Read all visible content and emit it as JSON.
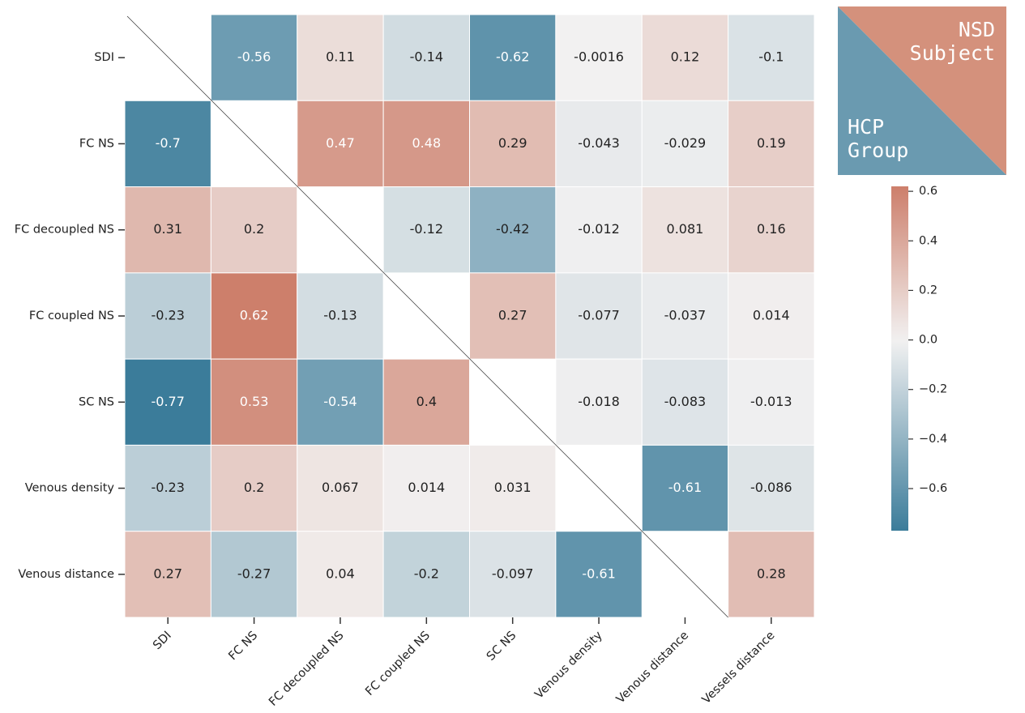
{
  "chart_data": {
    "type": "heatmap",
    "x_categories": [
      "SDI",
      "FC NS",
      "FC decoupled NS",
      "FC coupled NS",
      "SC NS",
      "Venous density",
      "Venous distance",
      "Vessels distance"
    ],
    "y_categories": [
      "SDI",
      "FC NS",
      "FC decoupled NS",
      "FC coupled NS",
      "SC NS",
      "Venous density",
      "Venous distance"
    ],
    "values": [
      [
        null,
        -0.56,
        0.11,
        -0.14,
        -0.62,
        -0.0016,
        0.12,
        -0.1
      ],
      [
        -0.7,
        null,
        0.47,
        0.48,
        0.29,
        -0.043,
        -0.029,
        0.19
      ],
      [
        0.31,
        0.2,
        null,
        -0.12,
        -0.42,
        -0.012,
        0.081,
        0.16
      ],
      [
        -0.23,
        0.62,
        -0.13,
        null,
        0.27,
        -0.077,
        -0.037,
        0.014
      ],
      [
        -0.77,
        0.53,
        -0.54,
        0.4,
        null,
        -0.018,
        -0.083,
        -0.013
      ],
      [
        -0.23,
        0.2,
        0.067,
        0.014,
        0.031,
        null,
        -0.61,
        -0.086
      ],
      [
        0.27,
        -0.27,
        0.04,
        -0.2,
        -0.097,
        -0.61,
        null,
        0.28
      ]
    ],
    "clim": [
      -0.77,
      0.62
    ],
    "cticks": [
      {
        "value": -0.6,
        "label": "−0.6"
      },
      {
        "value": -0.4,
        "label": "−0.4"
      },
      {
        "value": -0.2,
        "label": "−0.2"
      },
      {
        "value": 0,
        "label": "0.0"
      },
      0.2,
      0.4,
      0.6
    ],
    "colors": {
      "negative": "#3b7c9a",
      "center": "#f2f1f1",
      "positive": "#c4634a"
    },
    "legend": {
      "upper": [
        "NSD",
        "Subject"
      ],
      "upper_color": "#d4917c",
      "lower": [
        "HCP",
        "Group"
      ],
      "lower_color": "#6a9ab0"
    }
  }
}
